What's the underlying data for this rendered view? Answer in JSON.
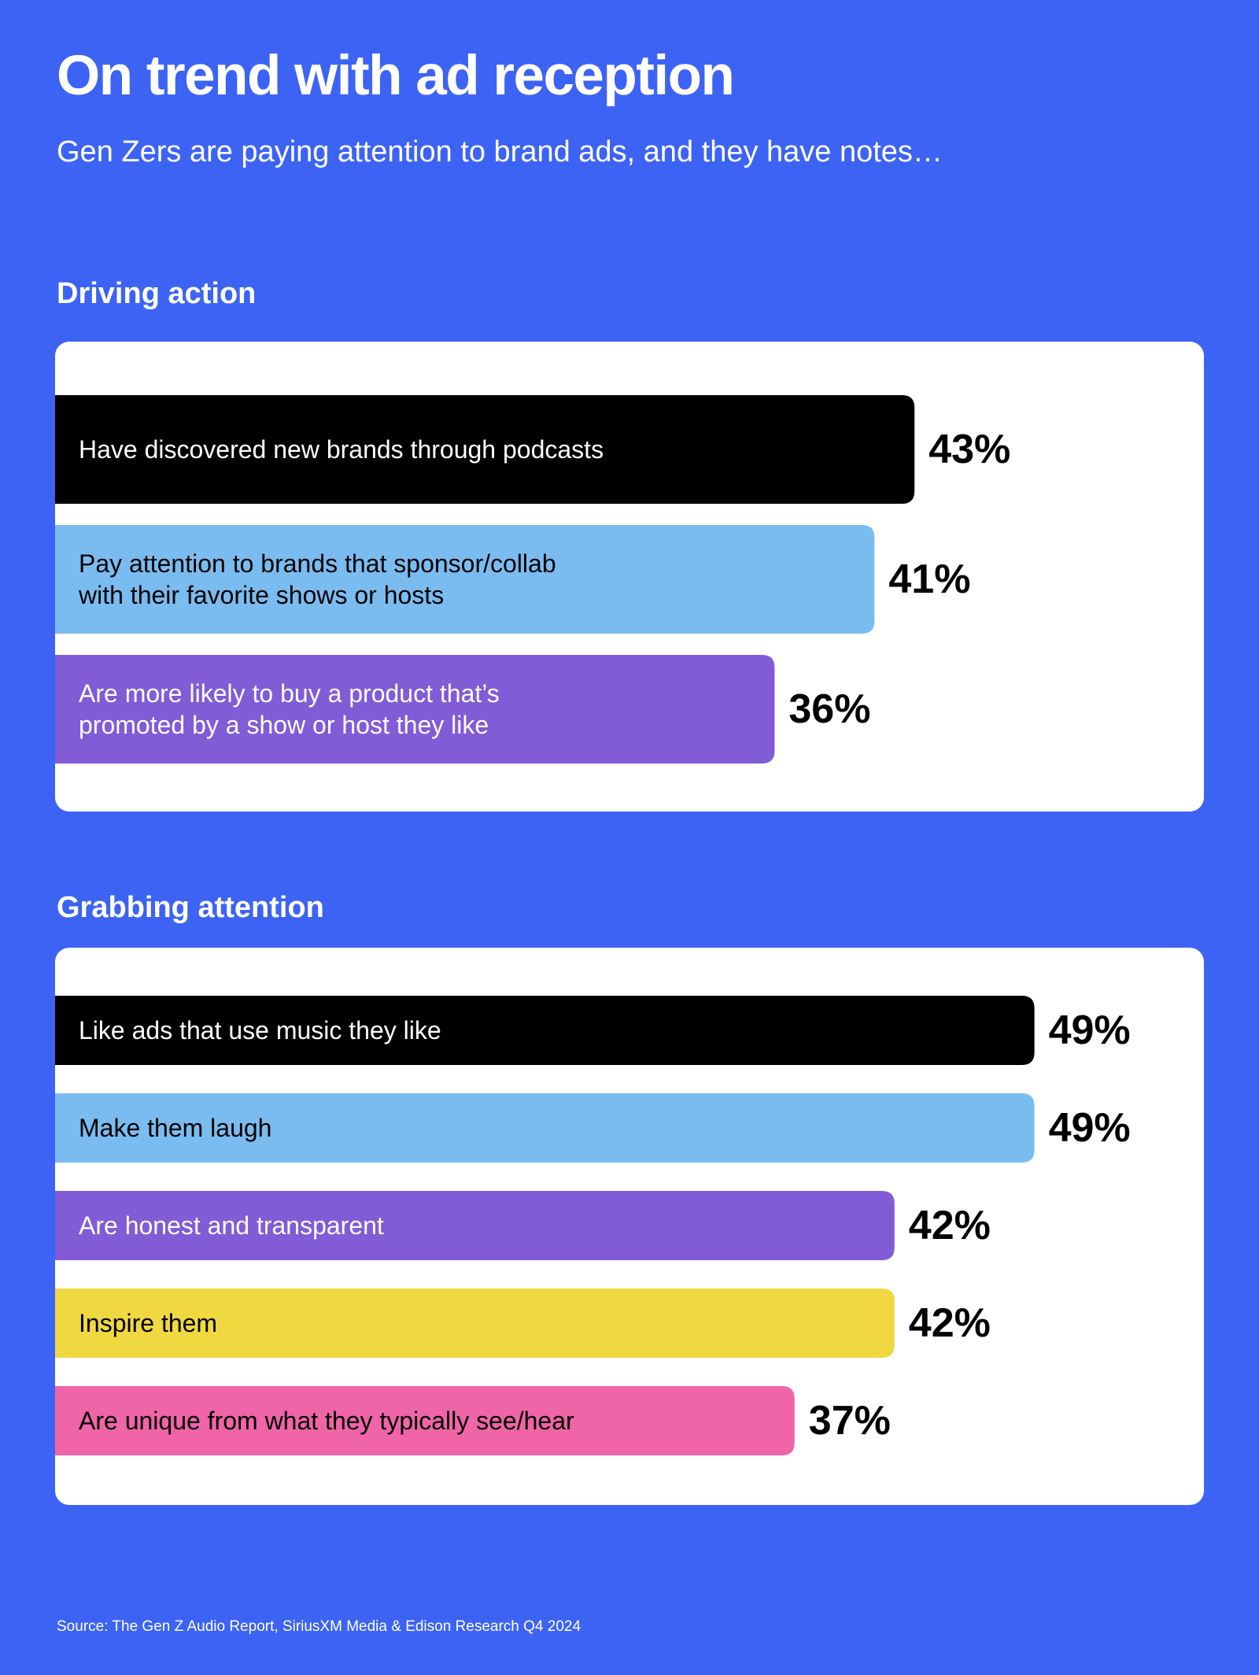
{
  "header": {
    "title": "On trend with ad reception",
    "subtitle": "Gen Zers are paying attention to brand ads, and they have notes…"
  },
  "footer": {
    "source": "Source: The Gen Z Audio Report, SiriusXM Media & Edison Research Q4 2024"
  },
  "colors": {
    "background": "#3d63f5",
    "panel": "#ffffff",
    "black": "#000000",
    "light_blue": "#7bbcf0",
    "purple": "#825bd6",
    "yellow": "#f0d840",
    "pink": "#f064a8"
  },
  "chart_data": [
    {
      "type": "bar",
      "orientation": "horizontal",
      "title": "Driving action",
      "unit": "%",
      "categories": [
        [
          "Have discovered new brands through podcasts"
        ],
        [
          "Pay attention to brands that sponsor/collab",
          "with their favorite shows or hosts"
        ],
        [
          "Are more likely to buy a product that’s",
          "promoted by a show or host they like"
        ]
      ],
      "values": [
        43,
        41,
        36
      ],
      "value_labels": [
        "43%",
        "41%",
        "36%"
      ],
      "bar_colors": [
        "#000000",
        "#7bbcf0",
        "#825bd6"
      ],
      "text_colors": [
        "#ffffff",
        "#000000",
        "#ffffff"
      ],
      "grid": false
    },
    {
      "type": "bar",
      "orientation": "horizontal",
      "title": "Grabbing attention",
      "unit": "%",
      "categories": [
        [
          "Like ads that use music they like"
        ],
        [
          "Make them laugh"
        ],
        [
          "Are honest and transparent"
        ],
        [
          "Inspire them"
        ],
        [
          "Are unique from what they typically see/hear"
        ]
      ],
      "values": [
        49,
        49,
        42,
        42,
        37
      ],
      "value_labels": [
        "49%",
        "49%",
        "42%",
        "42%",
        "37%"
      ],
      "bar_colors": [
        "#000000",
        "#7bbcf0",
        "#825bd6",
        "#f0d840",
        "#f064a8"
      ],
      "text_colors": [
        "#ffffff",
        "#000000",
        "#ffffff",
        "#000000",
        "#000000"
      ],
      "grid": false
    }
  ]
}
